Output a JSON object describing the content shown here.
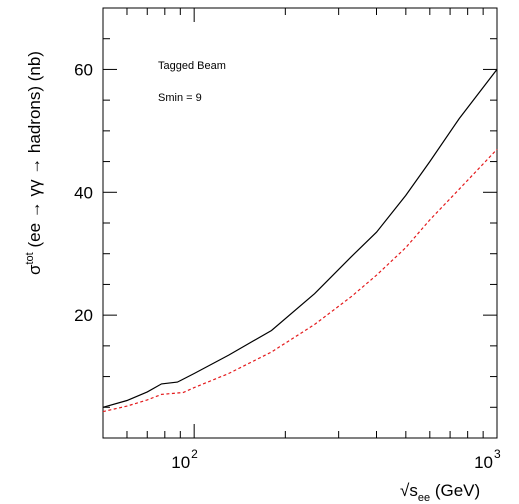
{
  "chart_data": {
    "type": "line",
    "xscale": "log",
    "xlim": [
      50,
      1000
    ],
    "ylim": [
      0,
      70
    ],
    "x_ticks": [
      {
        "base": "10",
        "exp": "2",
        "value": 100
      },
      {
        "base": "10",
        "exp": "3",
        "value": 1000
      }
    ],
    "y_ticks": [
      20,
      40,
      60
    ],
    "xlabel": {
      "prefix": "√s",
      "sub": "ee",
      "suffix": " (GeV)"
    },
    "ylabel": {
      "sigma": "σ",
      "sup": "tot",
      "rest": " (ee → γγ → hadrons) (nb)"
    },
    "annotations": [
      "Tagged Beam",
      "Smin = 9"
    ],
    "grid": false,
    "series": [
      {
        "style": "solid",
        "color": "#000000",
        "points": [
          [
            50,
            5.0
          ],
          [
            60,
            6.1
          ],
          [
            70,
            7.5
          ],
          [
            78,
            8.8
          ],
          [
            88,
            9.1
          ],
          [
            100,
            10.5
          ],
          [
            130,
            13.5
          ],
          [
            180,
            17.5
          ],
          [
            250,
            23.5
          ],
          [
            330,
            29.5
          ],
          [
            400,
            33.5
          ],
          [
            500,
            39.5
          ],
          [
            600,
            45.0
          ],
          [
            750,
            52.0
          ],
          [
            1000,
            60.0
          ]
        ]
      },
      {
        "style": "dashed",
        "color": "#e41a1c",
        "points": [
          [
            50,
            4.3
          ],
          [
            60,
            5.2
          ],
          [
            70,
            6.2
          ],
          [
            78,
            7.1
          ],
          [
            92,
            7.4
          ],
          [
            100,
            8.2
          ],
          [
            130,
            10.5
          ],
          [
            180,
            14.0
          ],
          [
            250,
            18.5
          ],
          [
            330,
            23.0
          ],
          [
            400,
            26.5
          ],
          [
            500,
            31.0
          ],
          [
            600,
            35.5
          ],
          [
            750,
            40.5
          ],
          [
            1000,
            47.0
          ]
        ]
      }
    ]
  }
}
